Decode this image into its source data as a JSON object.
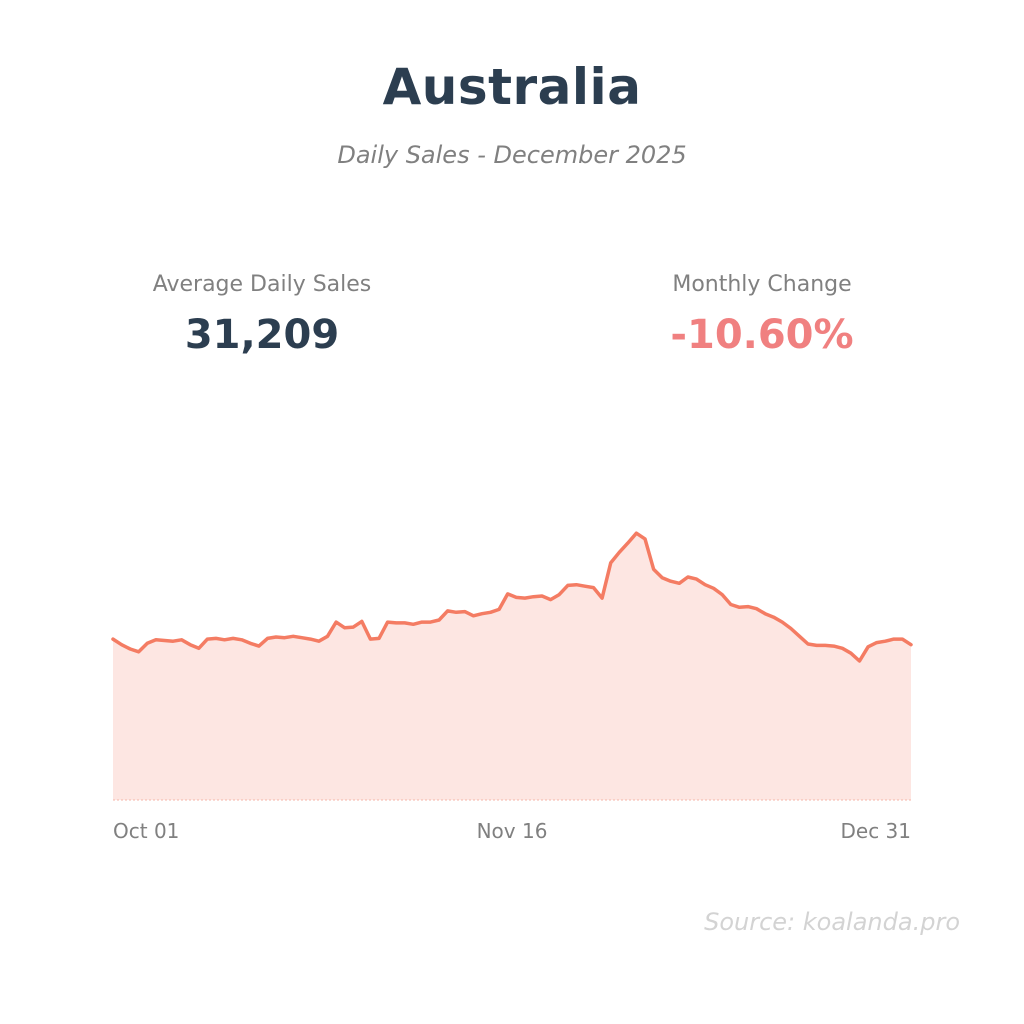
{
  "title": "Australia",
  "subtitle": "Daily Sales - December 2025",
  "kpis": {
    "average": {
      "label": "Average Daily Sales",
      "value": "31,209"
    },
    "change": {
      "label": "Monthly Change",
      "value": "-10.60%"
    }
  },
  "source": "Source: koalanda.pro",
  "colors": {
    "line": "#f47c63",
    "fill": "#fde6e2",
    "title": "#2c3e50",
    "negative": "#f08080",
    "muted": "#808080"
  },
  "chart_data": {
    "type": "area",
    "title": "",
    "xlabel": "",
    "ylabel": "",
    "x_range": [
      "2025-10-01",
      "2025-12-31"
    ],
    "x_ticks": [
      "Oct 01",
      "Nov 16",
      "Dec 31"
    ],
    "ylim": [
      0,
      52000
    ],
    "grid": false,
    "series": [
      {
        "values": [
          22800,
          22000,
          21400,
          21000,
          22200,
          22700,
          22600,
          22500,
          22700,
          22000,
          21500,
          22800,
          22900,
          22700,
          22900,
          22700,
          22200,
          21800,
          22900,
          23100,
          23000,
          23200,
          23000,
          22800,
          22500,
          23200,
          25200,
          24400,
          24500,
          25300,
          22800,
          22900,
          25200,
          25100,
          25100,
          24900,
          25200,
          25200,
          25500,
          26800,
          26600,
          26700,
          26100,
          26400,
          26600,
          27000,
          29200,
          28700,
          28600,
          28800,
          28900,
          28400,
          29100,
          30400,
          30500,
          30300,
          30100,
          28600,
          33600,
          35100,
          36400,
          37800,
          37000,
          32700,
          31500,
          31000,
          30700,
          31600,
          31300,
          30500,
          30000,
          29100,
          27700,
          27300,
          27400,
          27100,
          26400,
          25900,
          25200,
          24300,
          23200,
          22100,
          21900,
          21900,
          21800,
          21500,
          20800,
          19700,
          21700,
          22300,
          22500,
          22800,
          22800,
          22000
        ]
      }
    ]
  }
}
